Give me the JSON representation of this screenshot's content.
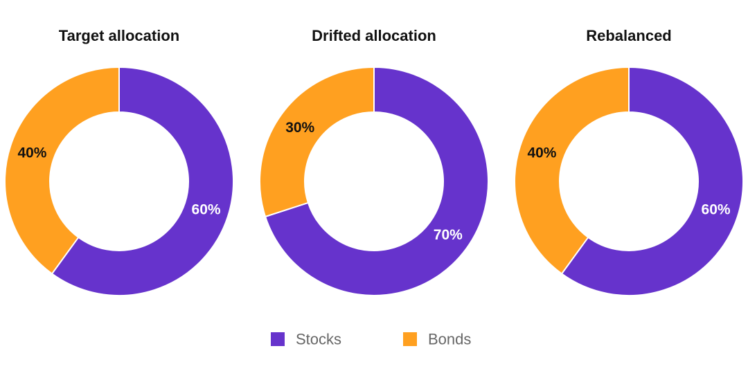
{
  "chart_data": [
    {
      "type": "pie",
      "donut": true,
      "title": "Target allocation",
      "categories": [
        "Stocks",
        "Bonds"
      ],
      "values": [
        60,
        40
      ],
      "labels": [
        "60%",
        "40%"
      ]
    },
    {
      "type": "pie",
      "donut": true,
      "title": "Drifted allocation",
      "categories": [
        "Stocks",
        "Bonds"
      ],
      "values": [
        70,
        30
      ],
      "labels": [
        "70%",
        "30%"
      ]
    },
    {
      "type": "pie",
      "donut": true,
      "title": "Rebalanced",
      "categories": [
        "Stocks",
        "Bonds"
      ],
      "values": [
        60,
        40
      ],
      "labels": [
        "60%",
        "40%"
      ]
    }
  ],
  "legend": {
    "position": "bottom",
    "items": [
      {
        "label": "Stocks",
        "color": "#6633CC"
      },
      {
        "label": "Bonds",
        "color": "#FFA020"
      }
    ]
  },
  "colors": {
    "Stocks": "#6633CC",
    "Bonds": "#FFA020",
    "stocks_label": "#FFFFFF",
    "bonds_label": "#111111"
  }
}
